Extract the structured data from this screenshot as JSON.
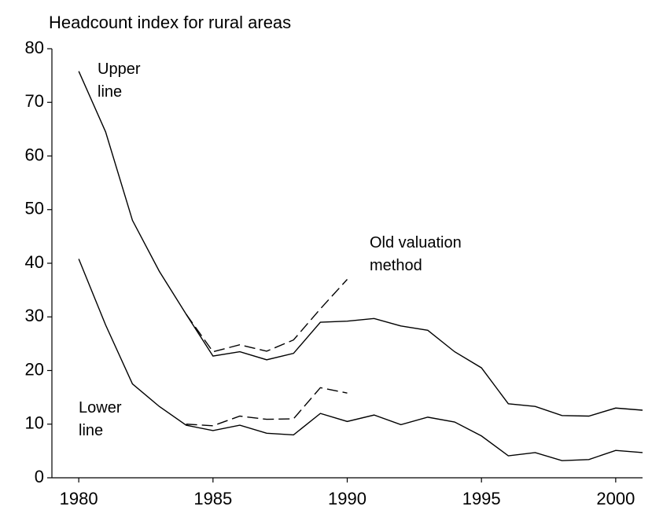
{
  "chart_data": {
    "type": "line",
    "title": "Headcount index for rural areas",
    "x": [
      1980,
      1981,
      1982,
      1983,
      1984,
      1985,
      1986,
      1987,
      1988,
      1989,
      1990,
      1991,
      1992,
      1993,
      1994,
      1995,
      1996,
      1997,
      1998,
      1999,
      2000,
      2001
    ],
    "series": [
      {
        "color": "#000000",
        "dashed": false,
        "values": [
          75.8,
          64.5,
          48,
          38.5,
          30.5,
          22.7,
          23.5,
          22,
          23.2,
          29,
          29.2,
          29.7,
          28.3,
          27.5,
          23.5,
          20.5,
          13.8,
          13.3,
          11.6,
          11.5,
          13,
          12.6
        ]
      },
      {
        "color": "#000000",
        "dashed": true,
        "values": [
          null,
          null,
          null,
          null,
          30.5,
          23.5,
          24.8,
          23.6,
          25.7,
          31.5,
          37,
          null,
          null,
          null,
          null,
          null,
          null,
          null,
          null,
          null,
          null,
          null
        ]
      },
      {
        "color": "#000000",
        "dashed": false,
        "values": [
          40.8,
          28.5,
          17.5,
          13.3,
          9.8,
          8.8,
          9.8,
          8.3,
          8,
          12,
          10.5,
          11.7,
          9.9,
          11.3,
          10.4,
          7.8,
          4.1,
          4.7,
          3.2,
          3.4,
          5.1,
          4.7
        ]
      },
      {
        "color": "#000000",
        "dashed": true,
        "values": [
          null,
          null,
          null,
          null,
          10,
          9.7,
          11.5,
          10.9,
          11,
          16.8,
          15.8,
          null,
          null,
          null,
          null,
          null,
          null,
          null,
          null,
          null,
          null,
          null
        ]
      }
    ],
    "annotations": [
      "Upper line",
      "Old valuation method",
      "Lower line"
    ],
    "xlim": [
      1979,
      2001
    ],
    "xticks": [
      1980,
      1985,
      1990,
      1995,
      2000
    ],
    "ylim": [
      0,
      80
    ],
    "yticks": [
      0,
      10,
      20,
      30,
      40,
      50,
      60,
      70,
      80
    ],
    "grid": false
  }
}
